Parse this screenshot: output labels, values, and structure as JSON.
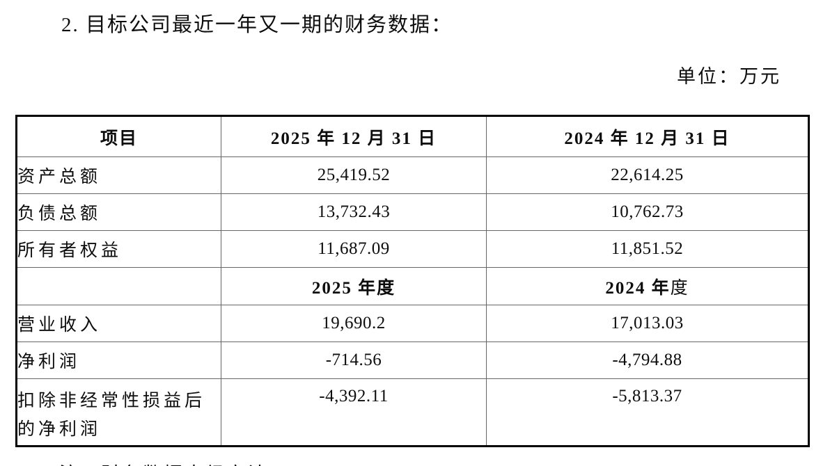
{
  "page": {
    "title": "2. 目标公司最近一年又一期的财务数据：",
    "unit_label": "单位：万元",
    "note": "注：财务数据未经审计。"
  },
  "table": {
    "header_row": {
      "item_label": "项目",
      "date_2025": "2025 年 12 月 31 日",
      "date_2024": "2024 年 12 月 31 日"
    },
    "rows_balance": [
      {
        "label": "资产总额",
        "y2025": "25,419.52",
        "y2024": "22,614.25"
      },
      {
        "label": "负债总额",
        "y2025": "13,732.43",
        "y2024": "10,762.73"
      },
      {
        "label": "所有者权益",
        "y2025": "11,687.09",
        "y2024": "11,851.52"
      }
    ],
    "period_row": {
      "label": "",
      "period_2025": "2025 年度",
      "period_2024_bold": "2024 年",
      "period_2024_regular": "度"
    },
    "rows_income": [
      {
        "label": "营业收入",
        "y2025": "19,690.2",
        "y2024": "17,013.03"
      },
      {
        "label": "净利润",
        "y2025": "-714.56",
        "y2024": "-4,794.88"
      },
      {
        "label": "扣除非经常性损益后的净利润",
        "y2025": "-4,392.11",
        "y2024": "-5,813.37"
      }
    ]
  }
}
